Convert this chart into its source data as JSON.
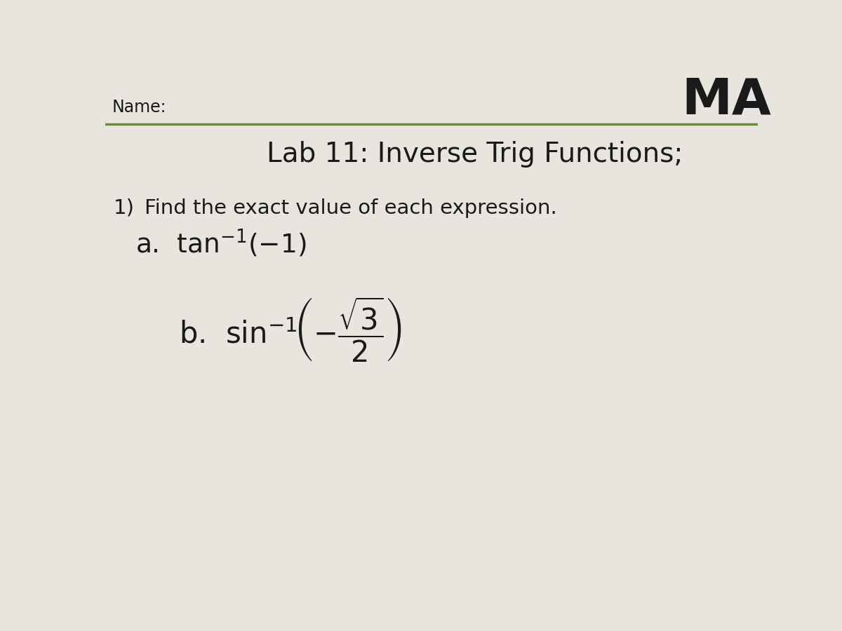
{
  "background_color": "#e8e5df",
  "name_label": "Name:",
  "ma_label": "MA",
  "title": "Lab 11: Inverse Trig Functions;",
  "question1_num": "1)",
  "question1_text": "Find the exact value of each expression.",
  "green_line_color": "#6b8c3a",
  "text_color": "#1a1a1a",
  "name_fontsize": 17,
  "ma_fontsize": 52,
  "title_fontsize": 28,
  "q1_fontsize": 21,
  "math_fontsize": 27,
  "part_b_math_fontsize": 30
}
